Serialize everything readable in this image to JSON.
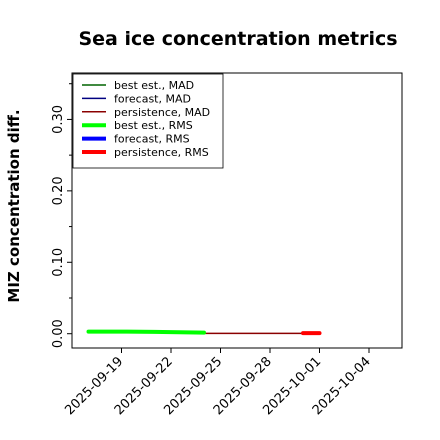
{
  "chart_data": {
    "type": "line",
    "title": "Sea ice concentration metrics",
    "xlabel": "",
    "ylabel": "MIZ concentration diff.",
    "x_ticks": [
      "2025-09-19",
      "2025-09-22",
      "2025-09-25",
      "2025-09-28",
      "2025-10-01",
      "2025-10-04"
    ],
    "highlighted_x_tick": "2025-09-25",
    "highlight_color": "#2ca02c",
    "y_ticks": [
      "0.00",
      "0.10",
      "0.20",
      "0.30"
    ],
    "xlim": [
      "2025-09-16",
      "2025-10-06"
    ],
    "ylim": [
      -0.02,
      0.365
    ],
    "legend_position": "upper left",
    "grid": false,
    "series": [
      {
        "name": "best est., MAD",
        "color": "#006400",
        "width": 1.5,
        "points": [
          [
            "2025-09-17",
            0.0025
          ],
          [
            "2025-09-19",
            0.0025
          ],
          [
            "2025-09-21",
            0.0022
          ],
          [
            "2025-09-24",
            0.0012
          ]
        ]
      },
      {
        "name": "forecast,  MAD",
        "color": "#000080",
        "width": 1.5,
        "points": [
          [
            "2025-09-17",
            0.0025
          ],
          [
            "2025-09-19",
            0.0025
          ],
          [
            "2025-09-21",
            0.0022
          ],
          [
            "2025-09-24",
            0.0012
          ]
        ]
      },
      {
        "name": "persistence, MAD",
        "color": "#8b0000",
        "width": 1.5,
        "points": [
          [
            "2025-09-24",
            0.0005
          ],
          [
            "2025-09-30",
            0.0005
          ],
          [
            "2025-10-01",
            0.0004
          ]
        ]
      },
      {
        "name": "best est., RMS",
        "color": "#00ff00",
        "width": 4,
        "points": [
          [
            "2025-09-17",
            0.003
          ],
          [
            "2025-09-19",
            0.003
          ],
          [
            "2025-09-21",
            0.0025
          ],
          [
            "2025-09-24",
            0.0015
          ]
        ]
      },
      {
        "name": "forecast,  RMS",
        "color": "#0000ff",
        "width": 4,
        "points": []
      },
      {
        "name": "persistence, RMS",
        "color": "#ff0000",
        "width": 4,
        "points": [
          [
            "2025-09-30",
            0.0008
          ],
          [
            "2025-10-01",
            0.0008
          ]
        ]
      }
    ]
  }
}
